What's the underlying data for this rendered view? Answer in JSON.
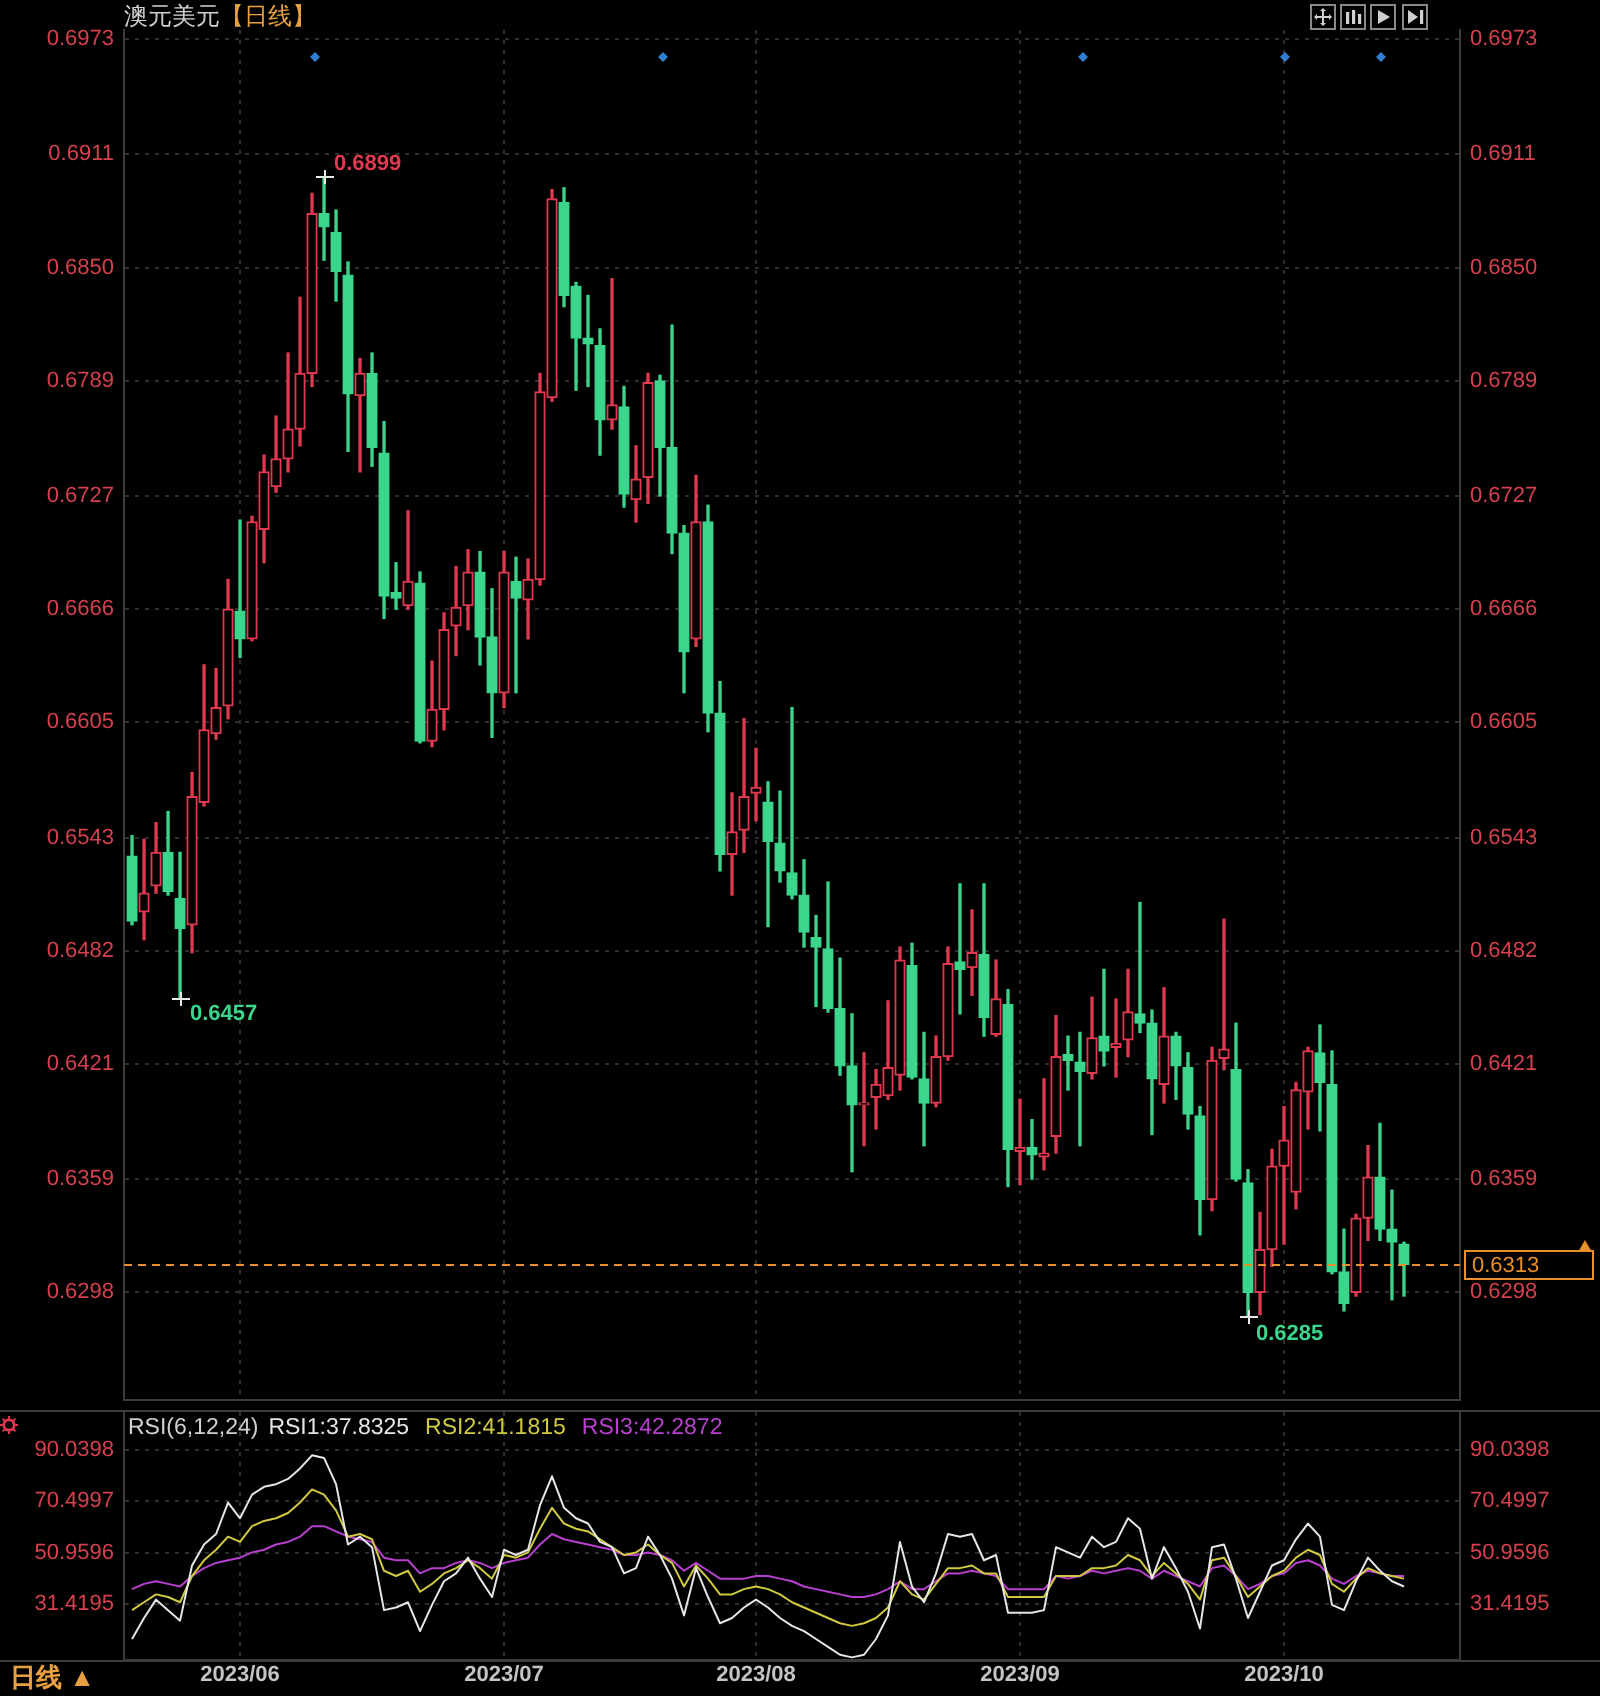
{
  "chart_data": [
    {
      "type": "candlestick",
      "title": "澳元美元",
      "subtitle": "【日线】",
      "categories": [
        null,
        null,
        null,
        null,
        null,
        null,
        null,
        null,
        null,
        "2023/06",
        null,
        null,
        null,
        null,
        null,
        null,
        null,
        null,
        null,
        null,
        null,
        null,
        null,
        null,
        null,
        null,
        null,
        null,
        null,
        null,
        null,
        "2023/07",
        null,
        null,
        null,
        null,
        null,
        null,
        null,
        null,
        null,
        null,
        null,
        null,
        null,
        null,
        null,
        null,
        null,
        null,
        null,
        null,
        "2023/08",
        null,
        null,
        null,
        null,
        null,
        null,
        null,
        null,
        null,
        null,
        null,
        null,
        null,
        null,
        null,
        null,
        null,
        null,
        null,
        null,
        null,
        "2023/09",
        null,
        null,
        null,
        null,
        null,
        null,
        null,
        null,
        null,
        null,
        null,
        null,
        null,
        null,
        null,
        null,
        null,
        null,
        null,
        null,
        null,
        "2023/10",
        null,
        null,
        null,
        null,
        null,
        null,
        null,
        null,
        null,
        null
      ],
      "ohlc": [
        [
          0.6533,
          0.6544,
          0.6496,
          0.6498
        ],
        [
          0.6503,
          0.6542,
          0.6488,
          0.6513
        ],
        [
          0.6517,
          0.6551,
          0.6513,
          0.6535
        ],
        [
          0.6535,
          0.6557,
          0.6512,
          0.6514
        ],
        [
          0.651,
          0.6535,
          0.6457,
          0.6494
        ],
        [
          0.6496,
          0.6578,
          0.6481,
          0.6565
        ],
        [
          0.6562,
          0.6636,
          0.656,
          0.6601
        ],
        [
          0.6599,
          0.6634,
          0.6596,
          0.6613
        ],
        [
          0.6614,
          0.6682,
          0.6607,
          0.6666
        ],
        [
          0.6665,
          0.6714,
          0.664,
          0.665
        ],
        [
          0.665,
          0.6716,
          0.6649,
          0.6713
        ],
        [
          0.6709,
          0.6749,
          0.6691,
          0.674
        ],
        [
          0.6732,
          0.677,
          0.6729,
          0.6747
        ],
        [
          0.6747,
          0.6804,
          0.674,
          0.6763
        ],
        [
          0.6763,
          0.6834,
          0.6754,
          0.6793
        ],
        [
          0.6793,
          0.689,
          0.6786,
          0.6879
        ],
        [
          0.6879,
          0.6899,
          0.6854,
          0.6872
        ],
        [
          0.6869,
          0.6881,
          0.6832,
          0.6848
        ],
        [
          0.6846,
          0.6853,
          0.6751,
          0.6782
        ],
        [
          0.6781,
          0.6801,
          0.674,
          0.6793
        ],
        [
          0.6793,
          0.6804,
          0.6743,
          0.6753
        ],
        [
          0.675,
          0.6767,
          0.6661,
          0.6673
        ],
        [
          0.6675,
          0.6691,
          0.6666,
          0.6672
        ],
        [
          0.6668,
          0.6719,
          0.6666,
          0.6681
        ],
        [
          0.668,
          0.6686,
          0.6594,
          0.6595
        ],
        [
          0.6595,
          0.6638,
          0.6592,
          0.6612
        ],
        [
          0.6612,
          0.6664,
          0.6601,
          0.6655
        ],
        [
          0.6657,
          0.6689,
          0.6641,
          0.6667
        ],
        [
          0.6668,
          0.6698,
          0.6655,
          0.6686
        ],
        [
          0.6686,
          0.6697,
          0.6636,
          0.6651
        ],
        [
          0.6651,
          0.6677,
          0.6597,
          0.6621
        ],
        [
          0.6621,
          0.6697,
          0.6613,
          0.6686
        ],
        [
          0.6681,
          0.6694,
          0.6621,
          0.6672
        ],
        [
          0.6671,
          0.6693,
          0.665,
          0.6682
        ],
        [
          0.6682,
          0.6793,
          0.6679,
          0.6783
        ],
        [
          0.678,
          0.6892,
          0.6778,
          0.6887
        ],
        [
          0.6885,
          0.6893,
          0.6829,
          0.6835
        ],
        [
          0.684,
          0.6842,
          0.6784,
          0.6812
        ],
        [
          0.6812,
          0.6835,
          0.6786,
          0.6809
        ],
        [
          0.6808,
          0.6817,
          0.6749,
          0.6768
        ],
        [
          0.6768,
          0.6844,
          0.6763,
          0.6776
        ],
        [
          0.6775,
          0.6786,
          0.6721,
          0.6728
        ],
        [
          0.6725,
          0.6754,
          0.6713,
          0.6736
        ],
        [
          0.6737,
          0.6793,
          0.6723,
          0.6788
        ],
        [
          0.6789,
          0.6792,
          0.6727,
          0.6753
        ],
        [
          0.6753,
          0.6819,
          0.6696,
          0.6707
        ],
        [
          0.6707,
          0.6711,
          0.6621,
          0.6643
        ],
        [
          0.665,
          0.6738,
          0.6646,
          0.6713
        ],
        [
          0.6713,
          0.6722,
          0.66,
          0.661
        ],
        [
          0.661,
          0.6627,
          0.6525,
          0.6534
        ],
        [
          0.6534,
          0.6567,
          0.6512,
          0.6546
        ],
        [
          0.6547,
          0.6607,
          0.6535,
          0.6565
        ],
        [
          0.6567,
          0.6591,
          0.6552,
          0.657
        ],
        [
          0.6562,
          0.6573,
          0.6495,
          0.6541
        ],
        [
          0.654,
          0.6568,
          0.6519,
          0.6525
        ],
        [
          0.6524,
          0.6613,
          0.651,
          0.6512
        ],
        [
          0.6512,
          0.6531,
          0.6484,
          0.6492
        ],
        [
          0.6489,
          0.6501,
          0.6452,
          0.6484
        ],
        [
          0.6483,
          0.6519,
          0.6449,
          0.6451
        ],
        [
          0.6451,
          0.6478,
          0.6415,
          0.642
        ],
        [
          0.642,
          0.6448,
          0.6363,
          0.6399
        ],
        [
          0.6399,
          0.6427,
          0.6377,
          0.64
        ],
        [
          0.6403,
          0.6418,
          0.6386,
          0.641
        ],
        [
          0.6404,
          0.6455,
          0.6402,
          0.6419
        ],
        [
          0.6415,
          0.6484,
          0.6407,
          0.6477
        ],
        [
          0.6474,
          0.6486,
          0.6413,
          0.6414
        ],
        [
          0.6413,
          0.6438,
          0.6377,
          0.64
        ],
        [
          0.64,
          0.6436,
          0.6398,
          0.6425
        ],
        [
          0.6425,
          0.6484,
          0.6423,
          0.6475
        ],
        [
          0.6476,
          0.6518,
          0.6448,
          0.6472
        ],
        [
          0.6473,
          0.6504,
          0.6458,
          0.6481
        ],
        [
          0.648,
          0.6518,
          0.6436,
          0.6446
        ],
        [
          0.6437,
          0.6477,
          0.6436,
          0.6456
        ],
        [
          0.6453,
          0.6461,
          0.6355,
          0.6375
        ],
        [
          0.6374,
          0.6402,
          0.6356,
          0.6376
        ],
        [
          0.6376,
          0.6391,
          0.6359,
          0.6372
        ],
        [
          0.6371,
          0.6413,
          0.6364,
          0.6373
        ],
        [
          0.6382,
          0.6447,
          0.6373,
          0.6425
        ],
        [
          0.6426,
          0.6436,
          0.6407,
          0.6423
        ],
        [
          0.6422,
          0.6438,
          0.6377,
          0.6417
        ],
        [
          0.6416,
          0.6457,
          0.6413,
          0.6435
        ],
        [
          0.6436,
          0.6472,
          0.642,
          0.6428
        ],
        [
          0.643,
          0.6456,
          0.6414,
          0.6432
        ],
        [
          0.6434,
          0.6472,
          0.6425,
          0.6449
        ],
        [
          0.6448,
          0.6508,
          0.6438,
          0.6443
        ],
        [
          0.6443,
          0.645,
          0.6383,
          0.6413
        ],
        [
          0.641,
          0.6462,
          0.64,
          0.6436
        ],
        [
          0.6436,
          0.6438,
          0.6402,
          0.642
        ],
        [
          0.6419,
          0.6427,
          0.6386,
          0.6394
        ],
        [
          0.6393,
          0.6398,
          0.6329,
          0.6348
        ],
        [
          0.6348,
          0.643,
          0.6342,
          0.6423
        ],
        [
          0.6424,
          0.6499,
          0.6418,
          0.6429
        ],
        [
          0.6418,
          0.6443,
          0.6358,
          0.6359
        ],
        [
          0.6357,
          0.6364,
          0.6285,
          0.6298
        ],
        [
          0.6298,
          0.6341,
          0.6286,
          0.6321
        ],
        [
          0.6321,
          0.6375,
          0.6312,
          0.6366
        ],
        [
          0.6366,
          0.6398,
          0.6324,
          0.638
        ],
        [
          0.6352,
          0.6411,
          0.6343,
          0.6407
        ],
        [
          0.6406,
          0.643,
          0.6386,
          0.6428
        ],
        [
          0.6427,
          0.6442,
          0.6385,
          0.6411
        ],
        [
          0.641,
          0.6428,
          0.6308,
          0.6309
        ],
        [
          0.6309,
          0.6332,
          0.6288,
          0.6292
        ],
        [
          0.6298,
          0.634,
          0.6296,
          0.6338
        ],
        [
          0.6338,
          0.6377,
          0.6326,
          0.636
        ],
        [
          0.636,
          0.6389,
          0.6326,
          0.6332
        ],
        [
          0.6332,
          0.6353,
          0.6294,
          0.6325
        ],
        [
          0.6324,
          0.6325,
          0.6296,
          0.6313
        ]
      ],
      "colors": [
        "#3bd68c",
        "#e0394f",
        "#e0394f",
        "#3bd68c",
        "#3bd68c",
        "#e0394f",
        "#e0394f",
        "#e0394f",
        "#e0394f",
        "#3bd68c",
        "#e0394f",
        "#e0394f",
        "#e0394f",
        "#e0394f",
        "#e0394f",
        "#e0394f",
        "#3bd68c",
        "#3bd68c",
        "#3bd68c",
        "#e0394f",
        "#3bd68c",
        "#3bd68c",
        "#3bd68c",
        "#e0394f",
        "#3bd68c",
        "#e0394f",
        "#e0394f",
        "#e0394f",
        "#e0394f",
        "#3bd68c",
        "#3bd68c",
        "#e0394f",
        "#3bd68c",
        "#e0394f",
        "#e0394f",
        "#e0394f",
        "#3bd68c",
        "#3bd68c",
        "#3bd68c",
        "#3bd68c",
        "#e0394f",
        "#3bd68c",
        "#e0394f",
        "#e0394f",
        "#3bd68c",
        "#3bd68c",
        "#3bd68c",
        "#e0394f",
        "#3bd68c",
        "#3bd68c",
        "#e0394f",
        "#e0394f",
        "#e0394f",
        "#3bd68c",
        "#3bd68c",
        "#3bd68c",
        "#3bd68c",
        "#3bd68c",
        "#3bd68c",
        "#3bd68c",
        "#3bd68c",
        "#e0394f",
        "#e0394f",
        "#e0394f",
        "#e0394f",
        "#3bd68c",
        "#3bd68c",
        "#e0394f",
        "#e0394f",
        "#3bd68c",
        "#e0394f",
        "#3bd68c",
        "#e0394f",
        "#3bd68c",
        "#e0394f",
        "#3bd68c",
        "#e0394f",
        "#e0394f",
        "#3bd68c",
        "#3bd68c",
        "#e0394f",
        "#3bd68c",
        "#e0394f",
        "#e0394f",
        "#3bd68c",
        "#3bd68c",
        "#e0394f",
        "#3bd68c",
        "#3bd68c",
        "#3bd68c",
        "#e0394f",
        "#e0394f",
        "#3bd68c",
        "#3bd68c",
        "#e0394f",
        "#e0394f",
        "#e0394f",
        "#e0394f",
        "#e0394f",
        "#3bd68c",
        "#3bd68c",
        "#3bd68c",
        "#e0394f",
        "#e0394f",
        "#3bd68c",
        "#3bd68c",
        "#3bd68c"
      ],
      "ylim": [
        0.624,
        0.6978
      ],
      "yticks": [
        0.6973,
        0.6911,
        {
          "value": 0.685,
          "label": "0.6850"
        },
        0.6789,
        0.6727,
        0.6666,
        0.6605,
        0.6543,
        0.6482,
        0.6421,
        0.6359,
        0.6298
      ],
      "y2lim": [
        0.624,
        0.6978
      ],
      "y2ticks": [
        0.6973,
        0.6911,
        {
          "value": 0.685,
          "label": "0.6850"
        },
        0.6789,
        0.6727,
        0.6666,
        0.6605,
        0.6543,
        0.6482,
        0.6421,
        0.6359,
        0.6298
      ],
      "ref_lines": [
        {
          "axis": "y",
          "value": 0.6313,
          "label": "0.6313",
          "color": "#e8902a",
          "line_style": "dashed"
        }
      ],
      "annotations": [
        "0.6899",
        "0.6457",
        "0.6285"
      ],
      "grid": true,
      "tick_labels": "y"
    },
    {
      "type": "line",
      "categories": [
        null,
        null,
        null,
        null,
        null,
        null,
        null,
        null,
        null,
        "2023/06",
        null,
        null,
        null,
        null,
        null,
        null,
        null,
        null,
        null,
        null,
        null,
        null,
        null,
        null,
        null,
        null,
        null,
        null,
        null,
        null,
        null,
        "2023/07",
        null,
        null,
        null,
        null,
        null,
        null,
        null,
        null,
        null,
        null,
        null,
        null,
        null,
        null,
        null,
        null,
        null,
        null,
        null,
        null,
        "2023/08",
        null,
        null,
        null,
        null,
        null,
        null,
        null,
        null,
        null,
        null,
        null,
        null,
        null,
        null,
        null,
        null,
        null,
        null,
        null,
        null,
        null,
        "2023/09",
        null,
        null,
        null,
        null,
        null,
        null,
        null,
        null,
        null,
        null,
        null,
        null,
        null,
        null,
        null,
        null,
        null,
        null,
        null,
        null,
        null,
        "2023/10",
        null,
        null,
        null,
        null,
        null,
        null,
        null,
        null,
        null,
        null
      ],
      "series": [
        {
          "name": "RSI1:37.8325",
          "color": "#e6e6e6",
          "values": [
            18,
            26,
            33,
            29,
            25,
            46,
            54,
            58,
            70,
            64,
            73,
            76,
            77,
            79,
            83,
            88,
            87,
            77,
            54,
            57,
            53,
            29,
            30,
            32,
            21,
            31,
            40,
            43,
            49,
            41,
            34,
            52,
            50,
            52,
            69,
            80,
            68,
            64,
            62,
            55,
            53,
            43,
            45,
            57,
            50,
            41,
            27,
            45,
            34,
            24,
            26,
            30,
            33,
            30,
            26,
            23,
            21,
            18,
            15,
            12,
            11,
            12,
            18,
            27,
            55,
            38,
            32,
            43,
            58,
            57,
            58,
            48,
            50,
            28,
            28,
            28,
            29,
            53,
            51,
            49,
            57,
            53,
            55,
            64,
            60,
            41,
            53,
            45,
            36,
            22,
            53,
            54,
            41,
            26,
            36,
            46,
            48,
            56,
            62,
            57,
            31,
            29,
            40,
            49,
            44,
            40,
            38
          ]
        },
        {
          "name": "RSI2:41.1815",
          "color": "#cfc942",
          "values": [
            29,
            32,
            35,
            34,
            32,
            42,
            48,
            52,
            57,
            55,
            61,
            63,
            64,
            66,
            70,
            75,
            73,
            67,
            57,
            58,
            56,
            44,
            42,
            44,
            36,
            39,
            43,
            45,
            48,
            45,
            41,
            50,
            49,
            51,
            60,
            68,
            62,
            60,
            59,
            56,
            53,
            50,
            51,
            54,
            50,
            47,
            38,
            46,
            41,
            35,
            35,
            37,
            38,
            37,
            35,
            32,
            30,
            28,
            26,
            24,
            23,
            24,
            26,
            30,
            40,
            35,
            33,
            39,
            45,
            45,
            46,
            43,
            43,
            34,
            34,
            34,
            34,
            42,
            42,
            42,
            45,
            45,
            46,
            50,
            48,
            42,
            47,
            43,
            39,
            33,
            48,
            49,
            42,
            34,
            38,
            42,
            44,
            49,
            52,
            50,
            39,
            36,
            41,
            45,
            43,
            42,
            41
          ]
        },
        {
          "name": "RSI3:42.2872",
          "color": "#b83fcf",
          "values": [
            37,
            39,
            40,
            39,
            38,
            42,
            45,
            47,
            48,
            49,
            51,
            52,
            54,
            55,
            57,
            61,
            61,
            59,
            57,
            56,
            55,
            49,
            48,
            48,
            43,
            45,
            45,
            47,
            48,
            47,
            45,
            47,
            48,
            49,
            54,
            58,
            56,
            55,
            54,
            53,
            52,
            50,
            50,
            51,
            50,
            48,
            44,
            47,
            44,
            41,
            41,
            41,
            42,
            42,
            41,
            40,
            38,
            37,
            36,
            35,
            34,
            34,
            35,
            37,
            40,
            37,
            37,
            40,
            43,
            43,
            44,
            43,
            42,
            37,
            37,
            37,
            37,
            42,
            41,
            42,
            44,
            43,
            44,
            45,
            44,
            41,
            44,
            42,
            40,
            38,
            45,
            46,
            42,
            37,
            39,
            42,
            43,
            47,
            48,
            46,
            41,
            39,
            42,
            44,
            43,
            42,
            42
          ]
        }
      ],
      "legend_title": "RSI(6,12,24)",
      "legend": "top left",
      "ylim": [
        10,
        104.5
      ],
      "yticks": [
        90.0398,
        70.4997,
        50.9596,
        31.4195
      ],
      "y2lim": [
        10,
        104.5
      ],
      "y2ticks": [
        90.0398,
        70.4997,
        50.9596,
        31.4195
      ],
      "grid": true,
      "annotations": [
        "日线 ▲"
      ]
    }
  ]
}
